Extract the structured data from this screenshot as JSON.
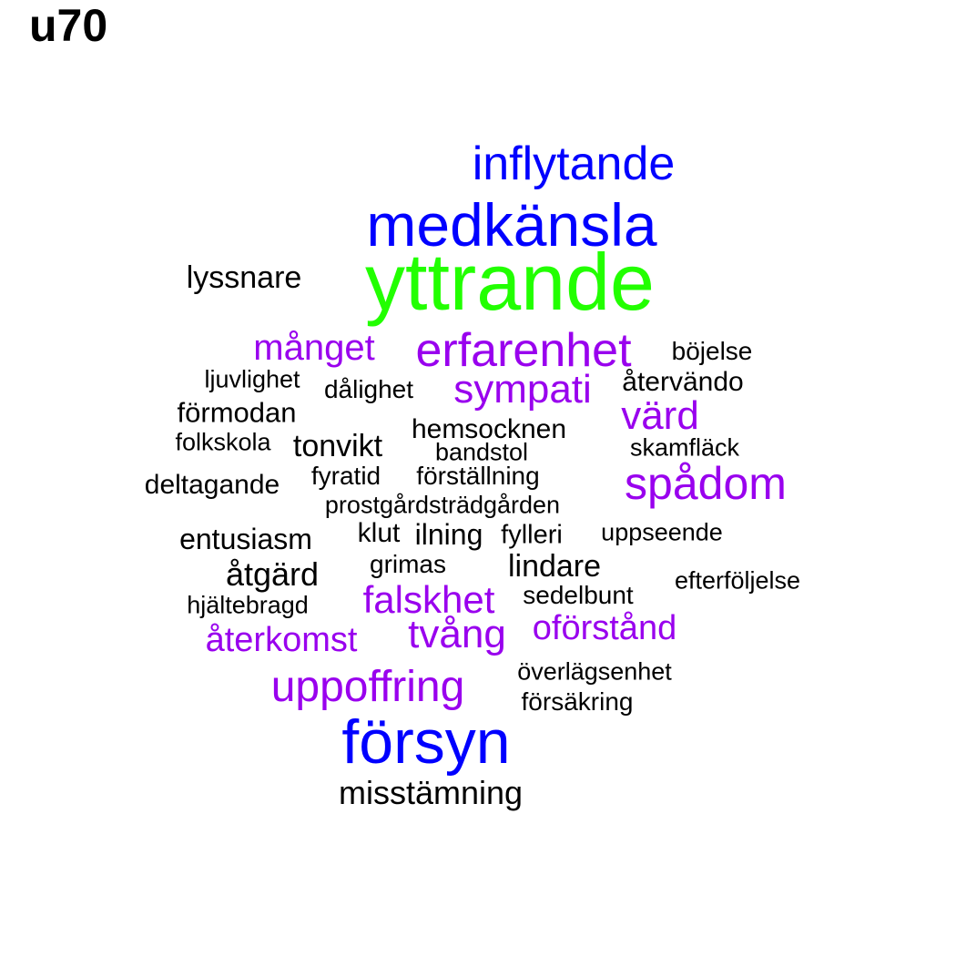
{
  "title": "u70",
  "colors": {
    "tier_1": "#22ff00",
    "tier_2": "#0000ff",
    "tier_3": "#9900ee",
    "tier_4": "#000000"
  },
  "words": [
    {
      "text": "yttrande",
      "tier": 1
    },
    {
      "text": "medkänsla",
      "tier": 2
    },
    {
      "text": "inflytande",
      "tier": 2
    },
    {
      "text": "försyn",
      "tier": 2
    },
    {
      "text": "lyssnare",
      "tier": 4
    },
    {
      "text": "månget",
      "tier": 3
    },
    {
      "text": "erfarenhet",
      "tier": 3
    },
    {
      "text": "böjelse",
      "tier": 4
    },
    {
      "text": "ljuvlighet",
      "tier": 4
    },
    {
      "text": "dålighet",
      "tier": 4
    },
    {
      "text": "sympati",
      "tier": 3
    },
    {
      "text": "återvändo",
      "tier": 4
    },
    {
      "text": "förmodan",
      "tier": 4
    },
    {
      "text": "värd",
      "tier": 3
    },
    {
      "text": "hemsocknen",
      "tier": 4
    },
    {
      "text": "folkskola",
      "tier": 4
    },
    {
      "text": "tonvikt",
      "tier": 4
    },
    {
      "text": "bandstol",
      "tier": 4
    },
    {
      "text": "skamfläck",
      "tier": 4
    },
    {
      "text": "fyratid",
      "tier": 4
    },
    {
      "text": "förställning",
      "tier": 4
    },
    {
      "text": "spådom",
      "tier": 3
    },
    {
      "text": "deltagande",
      "tier": 4
    },
    {
      "text": "prostgårdsträdgården",
      "tier": 4
    },
    {
      "text": "klut",
      "tier": 4
    },
    {
      "text": "ilning",
      "tier": 4
    },
    {
      "text": "fylleri",
      "tier": 4
    },
    {
      "text": "uppseende",
      "tier": 4
    },
    {
      "text": "entusiasm",
      "tier": 4
    },
    {
      "text": "grimas",
      "tier": 4
    },
    {
      "text": "lindare",
      "tier": 4
    },
    {
      "text": "åtgärd",
      "tier": 4
    },
    {
      "text": "efterföljelse",
      "tier": 4
    },
    {
      "text": "falskhet",
      "tier": 3
    },
    {
      "text": "sedelbunt",
      "tier": 4
    },
    {
      "text": "hjältebragd",
      "tier": 4
    },
    {
      "text": "tvång",
      "tier": 3
    },
    {
      "text": "oförstånd",
      "tier": 3
    },
    {
      "text": "återkomst",
      "tier": 3
    },
    {
      "text": "uppoffring",
      "tier": 3
    },
    {
      "text": "överlägsenhet",
      "tier": 4
    },
    {
      "text": "försäkring",
      "tier": 4
    },
    {
      "text": "misstämning",
      "tier": 4
    }
  ]
}
